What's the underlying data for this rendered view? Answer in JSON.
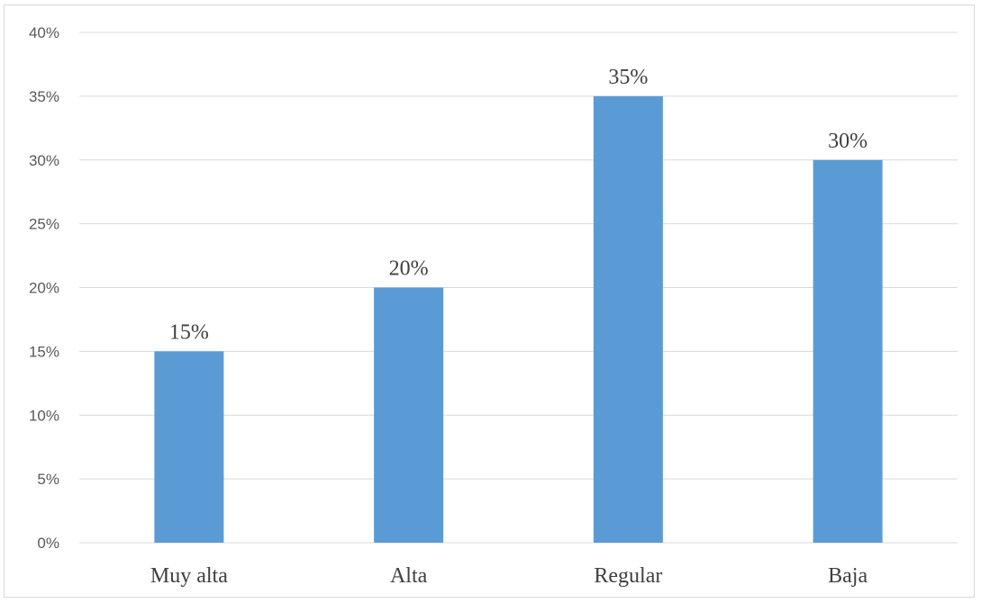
{
  "chart_data": {
    "type": "bar",
    "title": "",
    "xlabel": "",
    "ylabel": "",
    "categories": [
      "Muy alta",
      "Alta",
      "Regular",
      "Baja"
    ],
    "values": [
      15,
      20,
      35,
      30
    ],
    "data_labels": [
      "15%",
      "20%",
      "35%",
      "30%"
    ],
    "ylim": [
      0,
      40
    ],
    "y_ticks": [
      0,
      5,
      10,
      15,
      20,
      25,
      30,
      35,
      40
    ],
    "y_tick_labels": [
      "0%",
      "5%",
      "10%",
      "15%",
      "20%",
      "25%",
      "30%",
      "35%",
      "40%"
    ],
    "grid": true,
    "legend": "none",
    "bar_color": "#5b9bd5",
    "grid_color": "#d9d9d9"
  }
}
